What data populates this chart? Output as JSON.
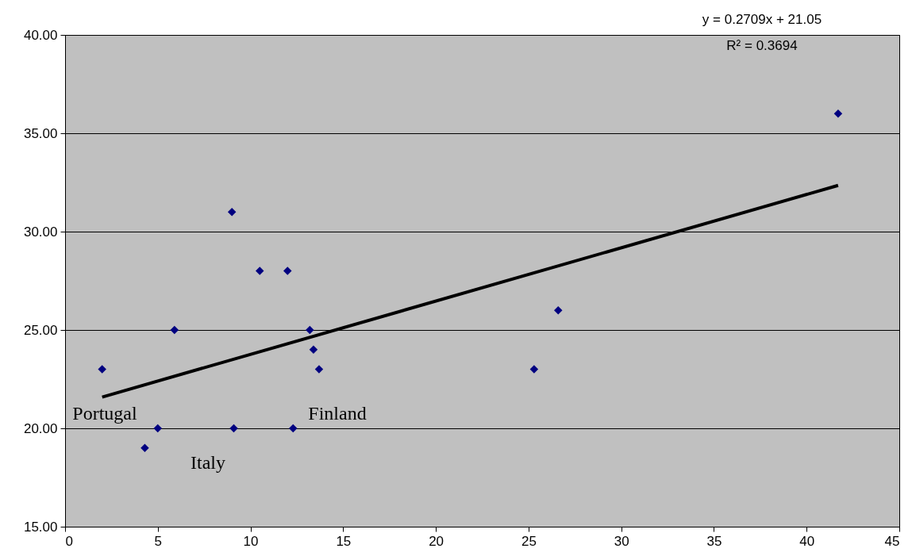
{
  "chart_data": {
    "type": "scatter",
    "grid": "y",
    "xlim": [
      0,
      45
    ],
    "xticks": [
      0,
      5,
      10,
      15,
      20,
      25,
      30,
      35,
      40,
      45
    ],
    "ylim": [
      15,
      40
    ],
    "yticks": [
      {
        "value": 15,
        "label": "15.00"
      },
      {
        "value": 20,
        "label": "20.00"
      },
      {
        "value": 25,
        "label": "25.00"
      },
      {
        "value": 30,
        "label": "30.00"
      },
      {
        "value": 35,
        "label": "35.00"
      },
      {
        "value": 40,
        "label": "40.00"
      }
    ],
    "series": [
      {
        "color": "#000080",
        "marker": "diamond",
        "x": [
          2.0,
          4.3,
          5.0,
          5.9,
          9.0,
          9.1,
          10.5,
          12.0,
          12.3,
          13.2,
          13.4,
          13.7,
          25.3,
          26.6,
          41.7
        ],
        "values": [
          23,
          19,
          20,
          25,
          31,
          20,
          28,
          28,
          20,
          25,
          24,
          23,
          23,
          26,
          36
        ]
      },
      {
        "type": "line",
        "color": "#000000",
        "x": [
          2.0,
          41.7
        ],
        "values": [
          21.59,
          32.35
        ]
      }
    ],
    "annotations": [
      "y = 0.2709x + 21.05",
      "R² = 0.3694",
      "Portugal",
      "Italy",
      "Finland"
    ]
  }
}
